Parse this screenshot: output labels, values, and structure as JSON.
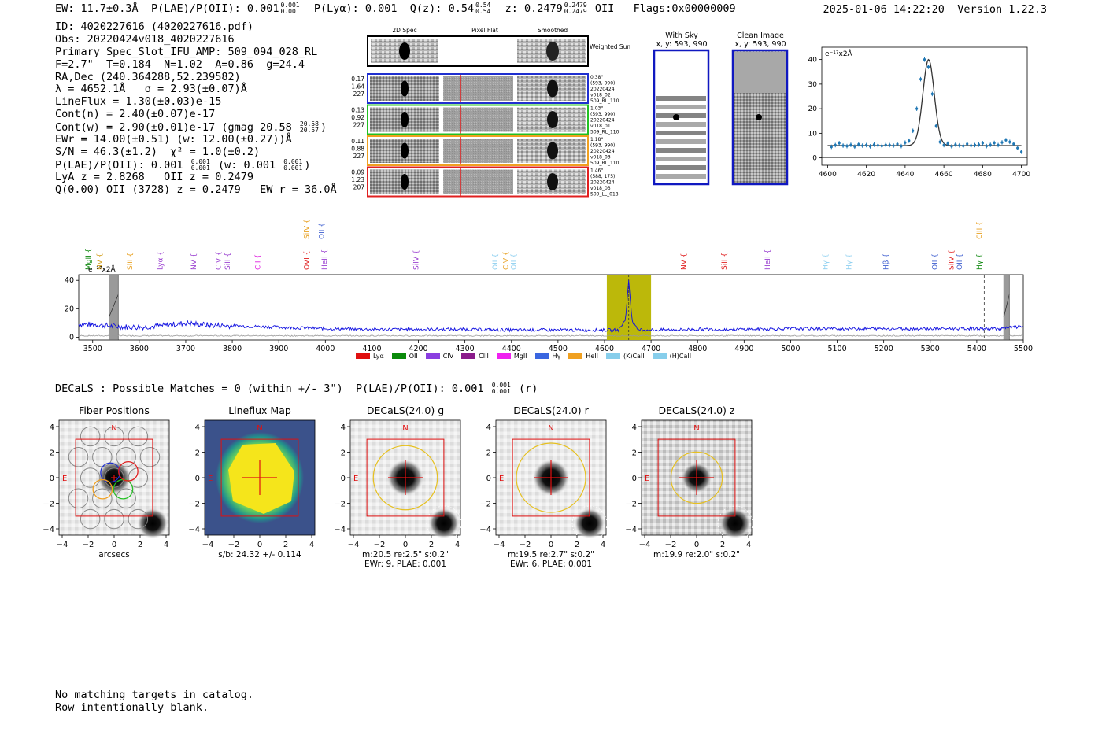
{
  "header": {
    "ew": "EW: 11.7±0.3Å",
    "plae_label": "P(LAE)/P(OII): 0.001",
    "plae_hi": "0.001",
    "plae_lo": "0.001",
    "plya": "P(Lyα): 0.001",
    "qz_label": "Q(z): 0.54",
    "qz_hi": "0.54",
    "qz_lo": "0.54",
    "z_label": "z: 0.2479",
    "z_hi": "0.2479",
    "z_lo": "0.2479",
    "z_line": "OII",
    "flags": "Flags:0x00000009",
    "datetime": "2025-01-06 14:22:20",
    "version": "Version 1.22.3"
  },
  "info": {
    "id": "ID: 4020227616 (4020227616.pdf)",
    "obs": "Obs: 20220424v018_4020227616",
    "primary": "Primary Spec_Slot_IFU_AMP: 509_094_028_RL",
    "fwhm": "F=2.7\"  T=0.184  N=1.02  A=0.86  g=24.4",
    "radec": "RA,Dec (240.364288,52.239582)",
    "lambda": "λ = 4652.1Å   σ = 2.93(±0.07)Å",
    "lineflux": "LineFlux = 1.30(±0.03)e-15",
    "contn": "Cont(n) = 2.40(±0.07)e-17",
    "contw": "Cont(w) = 2.90(±0.01)e-17 (gmag 20.58",
    "gmag_hi": "20.58",
    "gmag_lo": "20.57",
    "contw_close": ")",
    "ewr": "EWr = 14.00(±0.51) (w: 12.00(±0.27))Å",
    "sn": "S/N = 46.3(±1.2)  χ² = 1.0(±0.2)",
    "plae": "P(LAE)/P(OII): 0.001",
    "plae_hi": "0.001",
    "plae_lo": "0.001",
    "plae_w": "(w: 0.001",
    "plae_w_hi": "0.001",
    "plae_w_lo": "0.001",
    "plae_w_close": ")",
    "lyaz": "LyA z = 2.8268   OII z = 0.2479",
    "q": "Q(0.00) OII (3728) z = 0.2479   EW r = 36.0Å"
  },
  "fiber_strips": {
    "col_labels": [
      "2D Spec",
      "Pixel Flat",
      "Smoothed"
    ],
    "weighted_label": "Weighted Sum",
    "rows": [
      {
        "left": [
          "0.17",
          "1.64",
          "227"
        ],
        "right": [
          "0.38\"",
          "(593, 990)",
          "20220424",
          "v018_02",
          "509_RL_110"
        ],
        "color": "#1f2fd0"
      },
      {
        "left": [
          "0.13",
          "0.92",
          "227"
        ],
        "right": [
          "1.03\"",
          "(593, 990)",
          "20220424",
          "v018_01",
          "509_RL_110"
        ],
        "color": "#22c022"
      },
      {
        "left": [
          "0.11",
          "0.88",
          "227"
        ],
        "right": [
          "1.18\"",
          "(593, 990)",
          "20220424",
          "v018_03",
          "509_RL_110"
        ],
        "color": "#f0a020"
      },
      {
        "left": [
          "0.09",
          "1.23",
          "207"
        ],
        "right": [
          "1.46\"",
          "(588, 175)",
          "20220424",
          "v018_03",
          "509_LL_018"
        ],
        "color": "#e02020"
      }
    ]
  },
  "stamps": {
    "with_sky": {
      "title": "With Sky",
      "coords": "x, y: 593, 990"
    },
    "clean": {
      "title": "Clean Image",
      "coords": "x, y: 593, 990"
    }
  },
  "zoom_plot": {
    "ylabel": "e⁻¹⁷x2Å",
    "chart_data": {
      "type": "scatter",
      "x": [
        4602,
        4604,
        4606,
        4608,
        4610,
        4612,
        4614,
        4616,
        4618,
        4620,
        4622,
        4624,
        4626,
        4628,
        4630,
        4632,
        4634,
        4636,
        4638,
        4640,
        4642,
        4644,
        4646,
        4648,
        4650,
        4652,
        4654,
        4656,
        4658,
        4660,
        4662,
        4664,
        4666,
        4668,
        4670,
        4672,
        4674,
        4676,
        4678,
        4680,
        4682,
        4684,
        4686,
        4688,
        4690,
        4692,
        4694,
        4696,
        4698,
        4700
      ],
      "y": [
        4.5,
        5.2,
        6,
        5,
        4.8,
        5.3,
        4.6,
        5.5,
        5,
        5.2,
        4.7,
        5.4,
        5.1,
        4.9,
        5.3,
        5.2,
        5,
        5.6,
        4.8,
        6.2,
        7,
        11,
        20,
        32,
        40,
        37,
        26,
        13,
        6.5,
        5.2,
        5.8,
        4.7,
        5.4,
        5.1,
        4.9,
        5.7,
        5,
        5.2,
        5.4,
        6,
        4.8,
        5.3,
        6.1,
        5.2,
        6.3,
        7.2,
        6.5,
        5.7,
        4,
        2.5
      ],
      "xlim": [
        4597,
        4703
      ],
      "ylim": [
        -3,
        45
      ],
      "xticks": [
        4600,
        4620,
        4640,
        4660,
        4680,
        4700
      ],
      "yticks": [
        0,
        10,
        20,
        30,
        40
      ]
    }
  },
  "spectrum": {
    "ylabel": "e⁻¹⁷x2Å",
    "chart_data": {
      "type": "line",
      "xlim": [
        3470,
        5500
      ],
      "ylim": [
        -2,
        44
      ],
      "xticks": [
        3500,
        3600,
        3700,
        3800,
        3900,
        4000,
        4100,
        4200,
        4300,
        4400,
        4500,
        4600,
        4700,
        4800,
        4900,
        5000,
        5100,
        5200,
        5300,
        5400,
        5500
      ],
      "yticks": [
        0,
        20,
        40
      ],
      "continuum": [
        [
          3470,
          9
        ],
        [
          3500,
          9
        ],
        [
          3550,
          7.5
        ],
        [
          3600,
          7
        ],
        [
          3650,
          8
        ],
        [
          3700,
          10
        ],
        [
          3750,
          8.5
        ],
        [
          3800,
          8
        ],
        [
          3850,
          7.5
        ],
        [
          3900,
          7
        ],
        [
          3950,
          6.5
        ],
        [
          4000,
          6
        ],
        [
          4100,
          5.5
        ],
        [
          4200,
          5.5
        ],
        [
          4300,
          5.5
        ],
        [
          4400,
          5
        ],
        [
          4500,
          5
        ],
        [
          4600,
          5
        ],
        [
          4630,
          5
        ],
        [
          4645,
          12
        ],
        [
          4652,
          40
        ],
        [
          4659,
          12
        ],
        [
          4670,
          5.5
        ],
        [
          4700,
          5
        ],
        [
          4800,
          5.5
        ],
        [
          4900,
          5.5
        ],
        [
          5000,
          6
        ],
        [
          5100,
          6
        ],
        [
          5200,
          6
        ],
        [
          5300,
          6
        ],
        [
          5400,
          6
        ],
        [
          5450,
          6
        ],
        [
          5500,
          7.5
        ]
      ],
      "masked_regions": [
        [
          3535,
          3555
        ],
        [
          5458,
          5470
        ]
      ],
      "highlight_region": [
        4605,
        4700
      ],
      "line_marker": 4652,
      "dashed_marker": 5416
    },
    "line_labels": [
      {
        "name": "MgII",
        "x": 3495,
        "color": "#138a13",
        "row": 2
      },
      {
        "name": "NV",
        "x": 3520,
        "color": "#d4a020",
        "row": 2
      },
      {
        "name": "SiII",
        "x": 3585,
        "color": "#e8a020",
        "row": 2
      },
      {
        "name": "Lyα",
        "x": 3650,
        "color": "#9a40d0",
        "row": 2
      },
      {
        "name": "NV",
        "x": 3722,
        "color": "#9a40d0",
        "row": 2
      },
      {
        "name": "CIV",
        "x": 3775,
        "color": "#9a40d0",
        "row": 2
      },
      {
        "name": "SiII",
        "x": 3795,
        "color": "#9a40d0",
        "row": 2
      },
      {
        "name": "CII",
        "x": 3860,
        "color": "#e020e0",
        "row": 2
      },
      {
        "name": "OVI",
        "x": 3965,
        "color": "#e02020",
        "row": 2
      },
      {
        "name": "HeII",
        "x": 4003,
        "color": "#9a40d0",
        "row": 2
      },
      {
        "name": "SiIV",
        "x": 3965,
        "color": "#e8a020",
        "row": 1
      },
      {
        "name": "OII",
        "x": 3997,
        "color": "#4060d0",
        "row": 1
      },
      {
        "name": "SiIV",
        "x": 4200,
        "color": "#9a40d0",
        "row": 2
      },
      {
        "name": "OII",
        "x": 4370,
        "color": "#8fd0f0",
        "row": 2
      },
      {
        "name": "CIV",
        "x": 4393,
        "color": "#e8a020",
        "row": 2
      },
      {
        "name": "OII",
        "x": 4410,
        "color": "#8fd0f0",
        "row": 2
      },
      {
        "name": "NV",
        "x": 4775,
        "color": "#e02020",
        "row": 2
      },
      {
        "name": "SiII",
        "x": 4862,
        "color": "#e02020",
        "row": 2
      },
      {
        "name": "HeII",
        "x": 4955,
        "color": "#9a40d0",
        "row": 2
      },
      {
        "name": "Hγ",
        "x": 5080,
        "color": "#8fd0f0",
        "row": 2
      },
      {
        "name": "Hγ",
        "x": 5130,
        "color": "#8fd0f0",
        "row": 2
      },
      {
        "name": "Hβ",
        "x": 5210,
        "color": "#4060d0",
        "row": 2
      },
      {
        "name": "OII",
        "x": 5315,
        "color": "#4060d0",
        "row": 2
      },
      {
        "name": "SiIV",
        "x": 5350,
        "color": "#e02020",
        "row": 2
      },
      {
        "name": "OII",
        "x": 5368,
        "color": "#4060d0",
        "row": 2
      },
      {
        "name": "Hγ",
        "x": 5410,
        "color": "#138a13",
        "row": 2
      },
      {
        "name": "CIII",
        "x": 5410,
        "color": "#e8a020",
        "row": 1
      }
    ],
    "legend": [
      {
        "name": "Lyα",
        "color": "#e01010"
      },
      {
        "name": "OII",
        "color": "#0a8a0a"
      },
      {
        "name": "CIV",
        "color": "#8a3ee0"
      },
      {
        "name": "CIII",
        "color": "#8a1a8a"
      },
      {
        "name": "MgII",
        "color": "#f020f0"
      },
      {
        "name": "Hγ",
        "color": "#3a66e0"
      },
      {
        "name": "HeII",
        "color": "#f0a020"
      },
      {
        "name": "(K)CaII",
        "color": "#87ceeb"
      },
      {
        "name": "(H)CaII",
        "color": "#87ceeb"
      }
    ]
  },
  "decals": {
    "summary": "DECaLS : Possible Matches = 0 (within +/- 3\")  P(LAE)/P(OII): 0.001",
    "summary_hi": "0.001",
    "summary_lo": "0.001",
    "summary_band": "(r)",
    "panels": [
      {
        "title": "Fiber Positions",
        "caption1": "arcsecs",
        "caption2": "",
        "kind": "fiber"
      },
      {
        "title": "Lineflux Map",
        "caption1": "s/b: 24.32 +/- 0.114",
        "caption2": "",
        "kind": "flux"
      },
      {
        "title": "DECaLS(24.0) g",
        "caption1": "m:20.5  re:2.5\"  s:0.2\"",
        "caption2": "EWr: 9, PLAE: 0.001",
        "kind": "g"
      },
      {
        "title": "DECaLS(24.0) r",
        "caption1": "m:19.5  re:2.7\"  s:0.2\"",
        "caption2": "EWr: 6, PLAE: 0.001",
        "kind": "r"
      },
      {
        "title": "DECaLS(24.0) z",
        "caption1": "m:19.9  re:2.0\"  s:0.2\"",
        "caption2": "",
        "kind": "z"
      }
    ],
    "axis_ticks": [
      "−4",
      "−2",
      "0",
      "2",
      "4"
    ],
    "north": "N",
    "east": "E"
  },
  "footer": {
    "line1": "No matching targets in catalog.",
    "line2": "Row intentionally blank."
  }
}
